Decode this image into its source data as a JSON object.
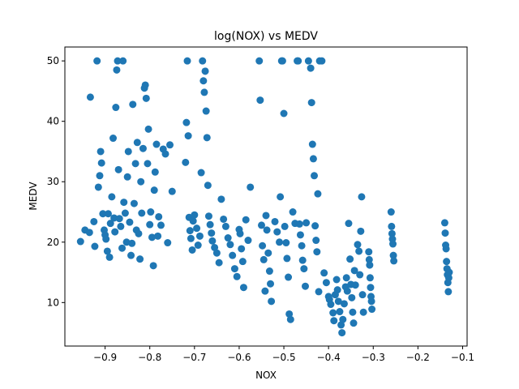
{
  "chart_data": {
    "type": "scatter",
    "title": "log(NOX) vs MEDV",
    "xlabel": "NOX",
    "ylabel": "MEDV",
    "xlim": [
      -0.99,
      -0.09
    ],
    "ylim": [
      2.8,
      52.3
    ],
    "xticks": [
      -0.9,
      -0.8,
      -0.7,
      -0.6,
      -0.5,
      -0.4,
      -0.3,
      -0.2,
      -0.1
    ],
    "xtick_labels": [
      "−0.9",
      "−0.8",
      "−0.7",
      "−0.6",
      "−0.5",
      "−0.4",
      "−0.3",
      "−0.2",
      "−0.1"
    ],
    "yticks": [
      10,
      20,
      30,
      40,
      50
    ],
    "ytick_labels": [
      "10",
      "20",
      "30",
      "40",
      "50"
    ],
    "grid": false,
    "marker_color": "#1f77b4",
    "points": [
      [
        -0.955,
        20.1
      ],
      [
        -0.945,
        22.0
      ],
      [
        -0.935,
        21.6
      ],
      [
        -0.933,
        44.0
      ],
      [
        -0.925,
        23.4
      ],
      [
        -0.923,
        19.3
      ],
      [
        -0.918,
        50.0
      ],
      [
        -0.915,
        29.1
      ],
      [
        -0.912,
        31.0
      ],
      [
        -0.91,
        35.0
      ],
      [
        -0.908,
        33.1
      ],
      [
        -0.905,
        24.7
      ],
      [
        -0.902,
        22.0
      ],
      [
        -0.9,
        21.2
      ],
      [
        -0.898,
        20.5
      ],
      [
        -0.895,
        18.5
      ],
      [
        -0.893,
        24.7
      ],
      [
        -0.89,
        17.5
      ],
      [
        -0.888,
        23.1
      ],
      [
        -0.885,
        27.5
      ],
      [
        -0.882,
        37.2
      ],
      [
        -0.88,
        24.0
      ],
      [
        -0.878,
        21.7
      ],
      [
        -0.876,
        42.3
      ],
      [
        -0.874,
        48.5
      ],
      [
        -0.872,
        50.0
      ],
      [
        -0.87,
        32.0
      ],
      [
        -0.868,
        23.9
      ],
      [
        -0.865,
        22.6
      ],
      [
        -0.862,
        19.0
      ],
      [
        -0.86,
        50.0
      ],
      [
        -0.858,
        26.6
      ],
      [
        -0.855,
        24.8
      ],
      [
        -0.852,
        20.0
      ],
      [
        -0.85,
        30.8
      ],
      [
        -0.848,
        35.0
      ],
      [
        -0.845,
        23.3
      ],
      [
        -0.842,
        17.8
      ],
      [
        -0.84,
        19.8
      ],
      [
        -0.838,
        42.8
      ],
      [
        -0.835,
        26.4
      ],
      [
        -0.832,
        33.0
      ],
      [
        -0.83,
        22.0
      ],
      [
        -0.828,
        36.5
      ],
      [
        -0.825,
        21.4
      ],
      [
        -0.822,
        17.2
      ],
      [
        -0.82,
        30.0
      ],
      [
        -0.818,
        24.8
      ],
      [
        -0.815,
        35.5
      ],
      [
        -0.812,
        45.5
      ],
      [
        -0.81,
        46.0
      ],
      [
        -0.808,
        43.8
      ],
      [
        -0.805,
        33.0
      ],
      [
        -0.803,
        38.7
      ],
      [
        -0.8,
        22.9
      ],
      [
        -0.798,
        25.0
      ],
      [
        -0.795,
        20.8
      ],
      [
        -0.792,
        16.1
      ],
      [
        -0.79,
        28.6
      ],
      [
        -0.788,
        31.6
      ],
      [
        -0.785,
        36.2
      ],
      [
        -0.782,
        21.0
      ],
      [
        -0.78,
        24.2
      ],
      [
        -0.775,
        22.8
      ],
      [
        -0.77,
        35.4
      ],
      [
        -0.765,
        34.6
      ],
      [
        -0.76,
        19.9
      ],
      [
        -0.755,
        36.1
      ],
      [
        -0.75,
        28.4
      ],
      [
        -0.72,
        33.2
      ],
      [
        -0.718,
        39.8
      ],
      [
        -0.716,
        50.0
      ],
      [
        -0.714,
        37.6
      ],
      [
        -0.712,
        24.1
      ],
      [
        -0.71,
        21.9
      ],
      [
        -0.708,
        20.6
      ],
      [
        -0.705,
        18.7
      ],
      [
        -0.703,
        23.5
      ],
      [
        -0.7,
        24.5
      ],
      [
        -0.695,
        22.3
      ],
      [
        -0.692,
        19.5
      ],
      [
        -0.688,
        21.0
      ],
      [
        -0.685,
        31.5
      ],
      [
        -0.682,
        50.0
      ],
      [
        -0.68,
        46.7
      ],
      [
        -0.678,
        44.8
      ],
      [
        -0.676,
        48.3
      ],
      [
        -0.674,
        41.7
      ],
      [
        -0.672,
        37.3
      ],
      [
        -0.67,
        29.4
      ],
      [
        -0.668,
        24.3
      ],
      [
        -0.665,
        22.9
      ],
      [
        -0.662,
        21.5
      ],
      [
        -0.66,
        20.2
      ],
      [
        -0.655,
        19.1
      ],
      [
        -0.65,
        18.2
      ],
      [
        -0.645,
        16.6
      ],
      [
        -0.64,
        27.1
      ],
      [
        -0.635,
        23.8
      ],
      [
        -0.63,
        22.6
      ],
      [
        -0.625,
        20.7
      ],
      [
        -0.62,
        19.6
      ],
      [
        -0.615,
        17.8
      ],
      [
        -0.61,
        15.6
      ],
      [
        -0.605,
        14.3
      ],
      [
        -0.6,
        22.1
      ],
      [
        -0.598,
        21.4
      ],
      [
        -0.595,
        18.9
      ],
      [
        -0.592,
        16.8
      ],
      [
        -0.59,
        12.5
      ],
      [
        -0.585,
        23.7
      ],
      [
        -0.58,
        20.3
      ],
      [
        -0.575,
        29.1
      ],
      [
        -0.555,
        50.0
      ],
      [
        -0.553,
        43.5
      ],
      [
        -0.55,
        22.8
      ],
      [
        -0.548,
        19.4
      ],
      [
        -0.545,
        17.1
      ],
      [
        -0.542,
        11.9
      ],
      [
        -0.54,
        24.4
      ],
      [
        -0.538,
        22.0
      ],
      [
        -0.535,
        18.2
      ],
      [
        -0.532,
        15.2
      ],
      [
        -0.53,
        13.1
      ],
      [
        -0.528,
        10.2
      ],
      [
        -0.52,
        23.4
      ],
      [
        -0.515,
        21.7
      ],
      [
        -0.51,
        20.0
      ],
      [
        -0.508,
        27.5
      ],
      [
        -0.505,
        50.0
      ],
      [
        -0.503,
        50.0
      ],
      [
        -0.5,
        41.3
      ],
      [
        -0.498,
        22.6
      ],
      [
        -0.495,
        19.9
      ],
      [
        -0.493,
        17.3
      ],
      [
        -0.49,
        14.2
      ],
      [
        -0.488,
        8.1
      ],
      [
        -0.485,
        7.2
      ],
      [
        -0.48,
        25.0
      ],
      [
        -0.475,
        23.1
      ],
      [
        -0.47,
        50.0
      ],
      [
        -0.468,
        50.0
      ],
      [
        -0.465,
        23.0
      ],
      [
        -0.463,
        21.2
      ],
      [
        -0.46,
        19.4
      ],
      [
        -0.458,
        17.0
      ],
      [
        -0.455,
        15.6
      ],
      [
        -0.452,
        12.7
      ],
      [
        -0.45,
        23.2
      ],
      [
        -0.445,
        50.0
      ],
      [
        -0.44,
        48.8
      ],
      [
        -0.438,
        43.1
      ],
      [
        -0.436,
        36.2
      ],
      [
        -0.434,
        33.8
      ],
      [
        -0.432,
        31.0
      ],
      [
        -0.43,
        22.7
      ],
      [
        -0.428,
        20.3
      ],
      [
        -0.426,
        18.4
      ],
      [
        -0.424,
        28.0
      ],
      [
        -0.422,
        11.8
      ],
      [
        -0.42,
        50.0
      ],
      [
        -0.415,
        50.0
      ],
      [
        -0.41,
        14.9
      ],
      [
        -0.405,
        13.3
      ],
      [
        -0.4,
        11.0
      ],
      [
        -0.398,
        10.5
      ],
      [
        -0.395,
        9.7
      ],
      [
        -0.39,
        8.3
      ],
      [
        -0.388,
        7.0
      ],
      [
        -0.385,
        11.3
      ],
      [
        -0.382,
        13.8
      ],
      [
        -0.38,
        12.1
      ],
      [
        -0.378,
        10.2
      ],
      [
        -0.375,
        8.5
      ],
      [
        -0.372,
        6.3
      ],
      [
        -0.37,
        5.0
      ],
      [
        -0.368,
        7.2
      ],
      [
        -0.365,
        9.8
      ],
      [
        -0.362,
        12.6
      ],
      [
        -0.36,
        14.1
      ],
      [
        -0.358,
        11.9
      ],
      [
        -0.355,
        23.1
      ],
      [
        -0.352,
        17.2
      ],
      [
        -0.35,
        13.0
      ],
      [
        -0.348,
        10.8
      ],
      [
        -0.346,
        8.4
      ],
      [
        -0.344,
        6.6
      ],
      [
        -0.342,
        15.3
      ],
      [
        -0.34,
        12.9
      ],
      [
        -0.335,
        19.6
      ],
      [
        -0.332,
        18.5
      ],
      [
        -0.33,
        14.6
      ],
      [
        -0.328,
        21.8
      ],
      [
        -0.326,
        27.5
      ],
      [
        -0.324,
        11.3
      ],
      [
        -0.322,
        8.4
      ],
      [
        -0.31,
        18.4
      ],
      [
        -0.309,
        17.1
      ],
      [
        -0.308,
        16.2
      ],
      [
        -0.307,
        14.1
      ],
      [
        -0.306,
        12.5
      ],
      [
        -0.305,
        11.0
      ],
      [
        -0.304,
        10.2
      ],
      [
        -0.303,
        8.9
      ],
      [
        -0.26,
        25.0
      ],
      [
        -0.259,
        22.6
      ],
      [
        -0.258,
        21.4
      ],
      [
        -0.257,
        20.5
      ],
      [
        -0.256,
        19.7
      ],
      [
        -0.255,
        17.8
      ],
      [
        -0.254,
        16.9
      ],
      [
        -0.14,
        23.2
      ],
      [
        -0.139,
        21.5
      ],
      [
        -0.138,
        19.5
      ],
      [
        -0.137,
        18.9
      ],
      [
        -0.136,
        16.8
      ],
      [
        -0.135,
        15.6
      ],
      [
        -0.134,
        14.6
      ],
      [
        -0.133,
        13.3
      ],
      [
        -0.132,
        11.8
      ],
      [
        -0.131,
        14.1
      ],
      [
        -0.13,
        15.0
      ]
    ]
  }
}
